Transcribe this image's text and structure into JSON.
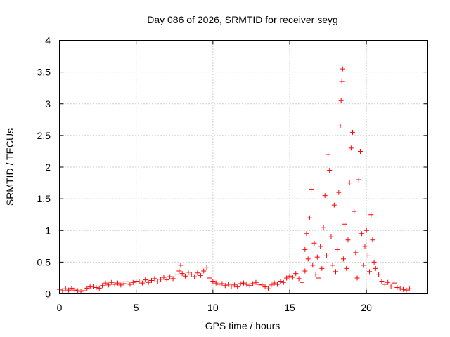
{
  "colors": {
    "series": "#ff0000",
    "grid": "#a0a0a0",
    "axis": "#000000"
  },
  "chart_data": {
    "type": "scatter",
    "title": "Day 086 of 2026, SRMTID for receiver seyg",
    "xlabel": "GPS time / hours",
    "ylabel": "SRMTID / TECUs",
    "xlim": [
      0,
      24
    ],
    "ylim": [
      0,
      4
    ],
    "xticks": [
      0,
      5,
      10,
      15,
      20
    ],
    "xtick_labels": [
      "0",
      "5",
      "10",
      "15",
      "20"
    ],
    "yticks": [
      0,
      0.5,
      1,
      1.5,
      2,
      2.5,
      3,
      3.5,
      4
    ],
    "ytick_labels": [
      "0",
      "0.5",
      "1",
      "1.5",
      "2",
      "2.5",
      "3",
      "3.5",
      "4"
    ],
    "grid": true,
    "marker": "plus",
    "series": [
      {
        "name": "SRMTID",
        "points": [
          [
            0.0,
            0.07
          ],
          [
            0.2,
            0.05
          ],
          [
            0.4,
            0.08
          ],
          [
            0.6,
            0.06
          ],
          [
            0.8,
            0.09
          ],
          [
            1.0,
            0.06
          ],
          [
            1.2,
            0.05
          ],
          [
            1.4,
            0.04
          ],
          [
            1.6,
            0.05
          ],
          [
            1.8,
            0.09
          ],
          [
            2.0,
            0.11
          ],
          [
            2.2,
            0.12
          ],
          [
            2.4,
            0.1
          ],
          [
            2.6,
            0.09
          ],
          [
            2.8,
            0.13
          ],
          [
            3.0,
            0.17
          ],
          [
            3.2,
            0.14
          ],
          [
            3.4,
            0.18
          ],
          [
            3.6,
            0.15
          ],
          [
            3.8,
            0.17
          ],
          [
            4.0,
            0.14
          ],
          [
            4.2,
            0.16
          ],
          [
            4.4,
            0.19
          ],
          [
            4.6,
            0.15
          ],
          [
            4.8,
            0.18
          ],
          [
            5.0,
            0.2
          ],
          [
            5.2,
            0.19
          ],
          [
            5.4,
            0.17
          ],
          [
            5.6,
            0.22
          ],
          [
            5.8,
            0.18
          ],
          [
            6.0,
            0.21
          ],
          [
            6.2,
            0.24
          ],
          [
            6.4,
            0.19
          ],
          [
            6.6,
            0.23
          ],
          [
            6.8,
            0.26
          ],
          [
            7.0,
            0.22
          ],
          [
            7.2,
            0.27
          ],
          [
            7.4,
            0.24
          ],
          [
            7.6,
            0.3
          ],
          [
            7.8,
            0.36
          ],
          [
            7.9,
            0.45
          ],
          [
            8.0,
            0.32
          ],
          [
            8.2,
            0.28
          ],
          [
            8.4,
            0.34
          ],
          [
            8.6,
            0.3
          ],
          [
            8.8,
            0.27
          ],
          [
            9.0,
            0.33
          ],
          [
            9.2,
            0.29
          ],
          [
            9.4,
            0.36
          ],
          [
            9.6,
            0.42
          ],
          [
            9.8,
            0.25
          ],
          [
            10.0,
            0.2
          ],
          [
            10.2,
            0.17
          ],
          [
            10.4,
            0.15
          ],
          [
            10.6,
            0.16
          ],
          [
            10.8,
            0.13
          ],
          [
            11.0,
            0.15
          ],
          [
            11.2,
            0.12
          ],
          [
            11.4,
            0.14
          ],
          [
            11.6,
            0.11
          ],
          [
            11.8,
            0.16
          ],
          [
            12.0,
            0.17
          ],
          [
            12.2,
            0.15
          ],
          [
            12.4,
            0.13
          ],
          [
            12.6,
            0.16
          ],
          [
            12.8,
            0.18
          ],
          [
            13.0,
            0.15
          ],
          [
            13.2,
            0.14
          ],
          [
            13.4,
            0.11
          ],
          [
            13.6,
            0.08
          ],
          [
            13.8,
            0.14
          ],
          [
            14.0,
            0.17
          ],
          [
            14.2,
            0.15
          ],
          [
            14.4,
            0.2
          ],
          [
            14.6,
            0.18
          ],
          [
            14.8,
            0.25
          ],
          [
            15.0,
            0.28
          ],
          [
            15.2,
            0.26
          ],
          [
            15.4,
            0.32
          ],
          [
            15.6,
            0.24
          ],
          [
            15.8,
            0.18
          ],
          [
            16.0,
            0.36
          ],
          [
            16.0,
            0.7
          ],
          [
            16.1,
            0.95
          ],
          [
            16.2,
            0.55
          ],
          [
            16.3,
            1.2
          ],
          [
            16.4,
            1.65
          ],
          [
            16.5,
            0.45
          ],
          [
            16.6,
            0.8
          ],
          [
            16.7,
            0.3
          ],
          [
            16.8,
            0.58
          ],
          [
            16.9,
            0.25
          ],
          [
            17.0,
            0.75
          ],
          [
            17.1,
            0.4
          ],
          [
            17.2,
            1.05
          ],
          [
            17.3,
            1.55
          ],
          [
            17.4,
            0.6
          ],
          [
            17.5,
            2.2
          ],
          [
            17.6,
            1.95
          ],
          [
            17.7,
            0.9
          ],
          [
            17.8,
            0.45
          ],
          [
            17.9,
            1.4
          ],
          [
            18.0,
            0.35
          ],
          [
            18.1,
            0.7
          ],
          [
            18.2,
            1.6
          ],
          [
            18.3,
            2.65
          ],
          [
            18.35,
            3.05
          ],
          [
            18.4,
            3.35
          ],
          [
            18.45,
            3.55
          ],
          [
            18.5,
            0.55
          ],
          [
            18.6,
            1.1
          ],
          [
            18.7,
            0.4
          ],
          [
            18.8,
            0.85
          ],
          [
            18.9,
            1.75
          ],
          [
            19.0,
            2.3
          ],
          [
            19.1,
            2.55
          ],
          [
            19.2,
            1.3
          ],
          [
            19.3,
            0.65
          ],
          [
            19.4,
            0.25
          ],
          [
            19.5,
            1.8
          ],
          [
            19.6,
            2.25
          ],
          [
            19.7,
            0.95
          ],
          [
            19.8,
            0.45
          ],
          [
            19.9,
            0.75
          ],
          [
            20.0,
            1.0
          ],
          [
            20.1,
            0.6
          ],
          [
            20.2,
            0.35
          ],
          [
            20.3,
            1.25
          ],
          [
            20.4,
            0.85
          ],
          [
            20.5,
            0.5
          ],
          [
            20.6,
            0.4
          ],
          [
            20.8,
            0.3
          ],
          [
            21.0,
            0.2
          ],
          [
            21.2,
            0.15
          ],
          [
            21.4,
            0.18
          ],
          [
            21.6,
            0.12
          ],
          [
            21.8,
            0.17
          ],
          [
            22.0,
            0.1
          ],
          [
            22.2,
            0.08
          ],
          [
            22.4,
            0.07
          ],
          [
            22.6,
            0.06
          ],
          [
            22.8,
            0.08
          ]
        ]
      }
    ]
  }
}
